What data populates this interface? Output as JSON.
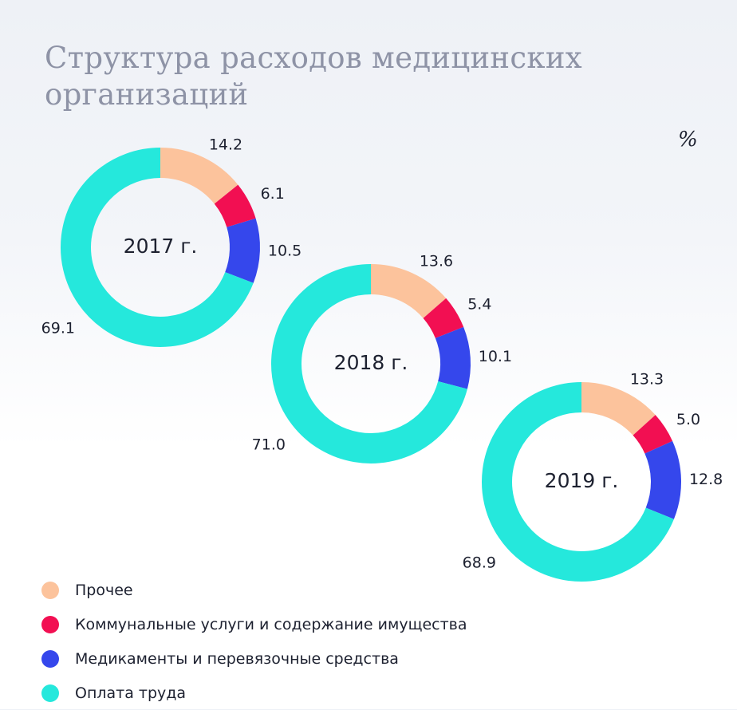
{
  "header": {
    "title": "Структура расходов медицинских организаций",
    "unit": "%"
  },
  "chart_data": {
    "type": "pie",
    "variant": "donut",
    "categories": [
      "Прочее",
      "Коммунальные услуги и содержание имущества",
      "Медикаменты и перевязочные средства",
      "Оплата труда"
    ],
    "colors": [
      "#fcc39c",
      "#f20f52",
      "#3547ec",
      "#25e8dc"
    ],
    "series": [
      {
        "name": "2017 г.",
        "values": [
          14.2,
          6.1,
          10.5,
          69.1
        ],
        "labels": [
          "14.2",
          "6.1",
          "10.5",
          "69.1"
        ]
      },
      {
        "name": "2018 г.",
        "values": [
          13.6,
          5.4,
          10.1,
          71.0
        ],
        "labels": [
          "13.6",
          "5.4",
          "10.1",
          "71.0"
        ]
      },
      {
        "name": "2019 г.",
        "values": [
          13.3,
          5.0,
          12.8,
          68.9
        ],
        "labels": [
          "13.3",
          "5.0",
          "12.8",
          "68.9"
        ]
      }
    ],
    "legend_position": "bottom-left"
  }
}
